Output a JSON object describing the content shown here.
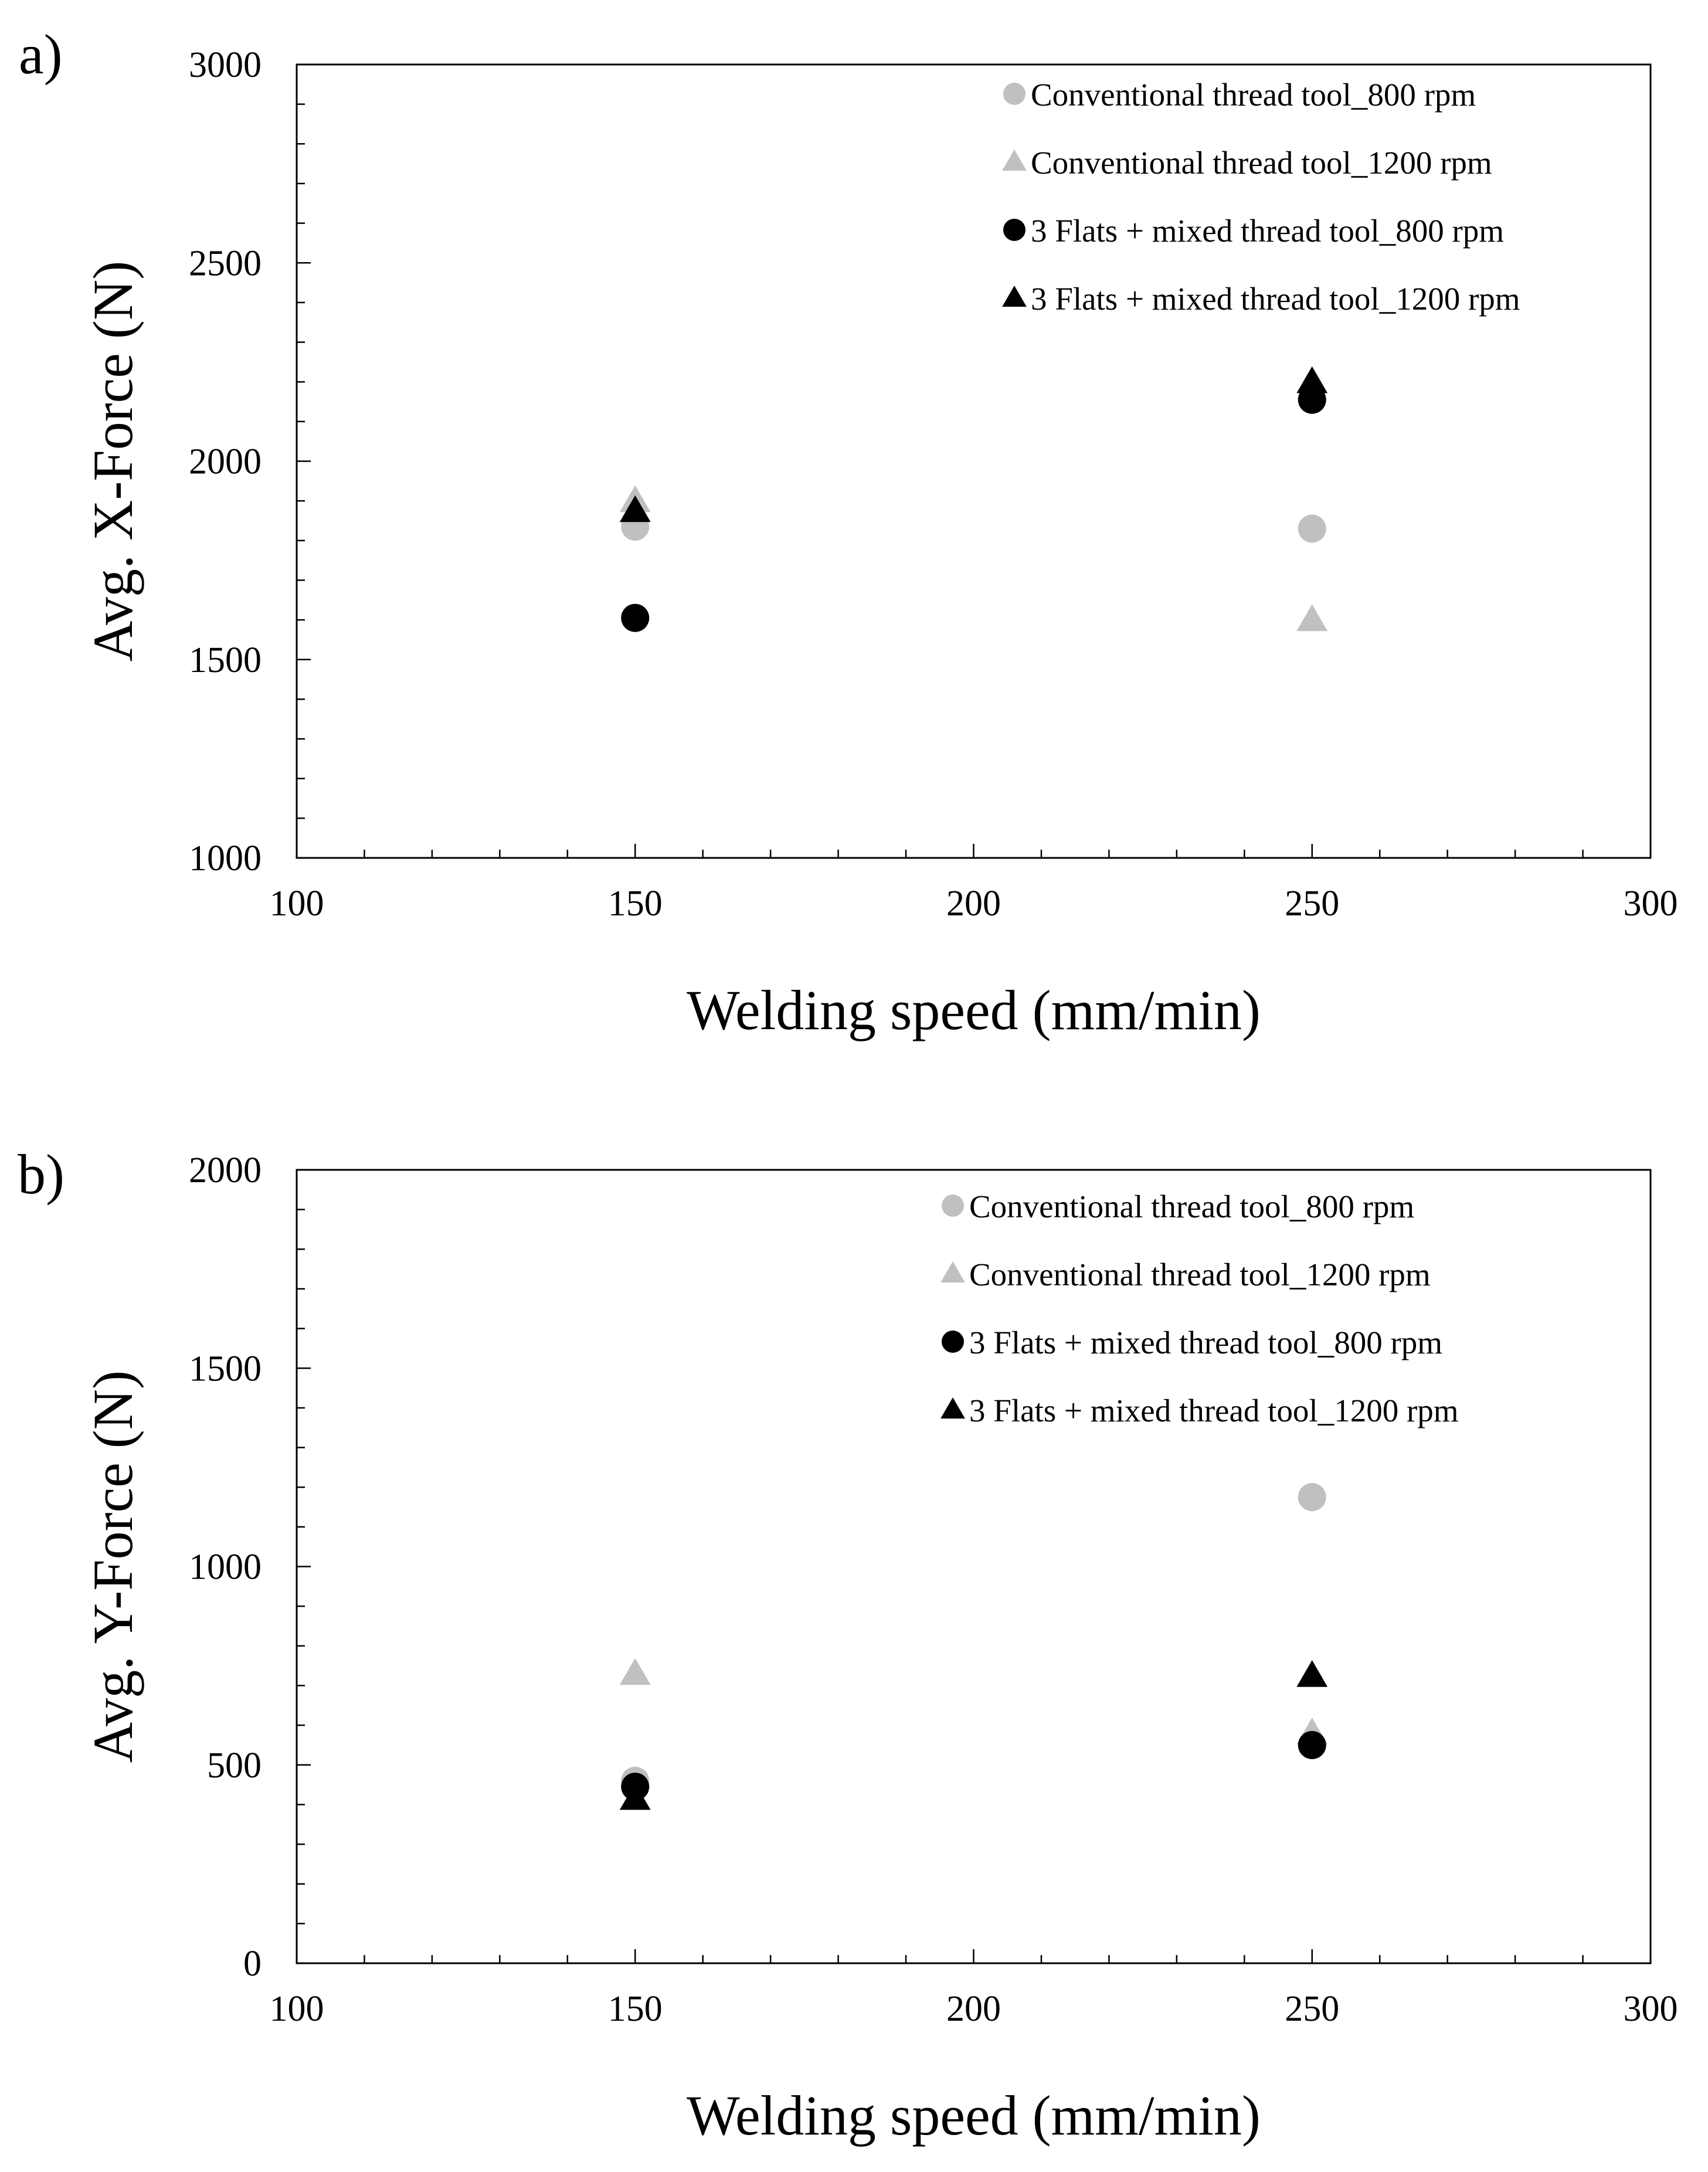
{
  "chart_data": [
    {
      "panel": "a)",
      "type": "scatter",
      "xlabel": "Welding speed (mm/min)",
      "ylabel": "Avg. X-Force (N)",
      "xlim": [
        100,
        300
      ],
      "ylim": [
        1000,
        3000
      ],
      "xticks": [
        100,
        150,
        200,
        250,
        300
      ],
      "yticks": [
        1000,
        1500,
        2000,
        2500,
        3000
      ],
      "grid": false,
      "legend_position": "top-right",
      "series": [
        {
          "name": "Conventional thread tool_800 rpm",
          "marker": "circle",
          "color": "#c0c0c0",
          "x": [
            150,
            250
          ],
          "y": [
            1835,
            1830
          ]
        },
        {
          "name": "Conventional thread tool_1200 rpm",
          "marker": "triangle",
          "color": "#c0c0c0",
          "x": [
            150,
            250
          ],
          "y": [
            1900,
            1600
          ]
        },
        {
          "name": "3 Flats + mixed thread tool_800 rpm",
          "marker": "circle",
          "color": "#000000",
          "x": [
            150,
            250
          ],
          "y": [
            1605,
            2155
          ]
        },
        {
          "name": "3 Flats + mixed thread tool_1200 rpm",
          "marker": "triangle",
          "color": "#000000",
          "x": [
            150,
            250
          ],
          "y": [
            1875,
            2200
          ]
        }
      ]
    },
    {
      "panel": "b)",
      "type": "scatter",
      "xlabel": "Welding speed (mm/min)",
      "ylabel": "Avg. Y-Force (N)",
      "xlim": [
        100,
        300
      ],
      "ylim": [
        0,
        2000
      ],
      "xticks": [
        100,
        150,
        200,
        250,
        300
      ],
      "yticks": [
        0,
        500,
        1000,
        1500,
        2000
      ],
      "grid": false,
      "legend_position": "top-right",
      "series": [
        {
          "name": "Conventional thread tool_800 rpm",
          "marker": "circle",
          "color": "#c0c0c0",
          "x": [
            150,
            250
          ],
          "y": [
            460,
            1175
          ]
        },
        {
          "name": "Conventional thread tool_1200 rpm",
          "marker": "triangle",
          "color": "#c0c0c0",
          "x": [
            150,
            250
          ],
          "y": [
            730,
            580
          ]
        },
        {
          "name": "3 Flats + mixed thread tool_800 rpm",
          "marker": "circle",
          "color": "#000000",
          "x": [
            150,
            250
          ],
          "y": [
            445,
            550
          ]
        },
        {
          "name": "3 Flats + mixed thread tool_1200 rpm",
          "marker": "triangle",
          "color": "#000000",
          "x": [
            150,
            250
          ],
          "y": [
            415,
            725
          ]
        }
      ]
    }
  ]
}
